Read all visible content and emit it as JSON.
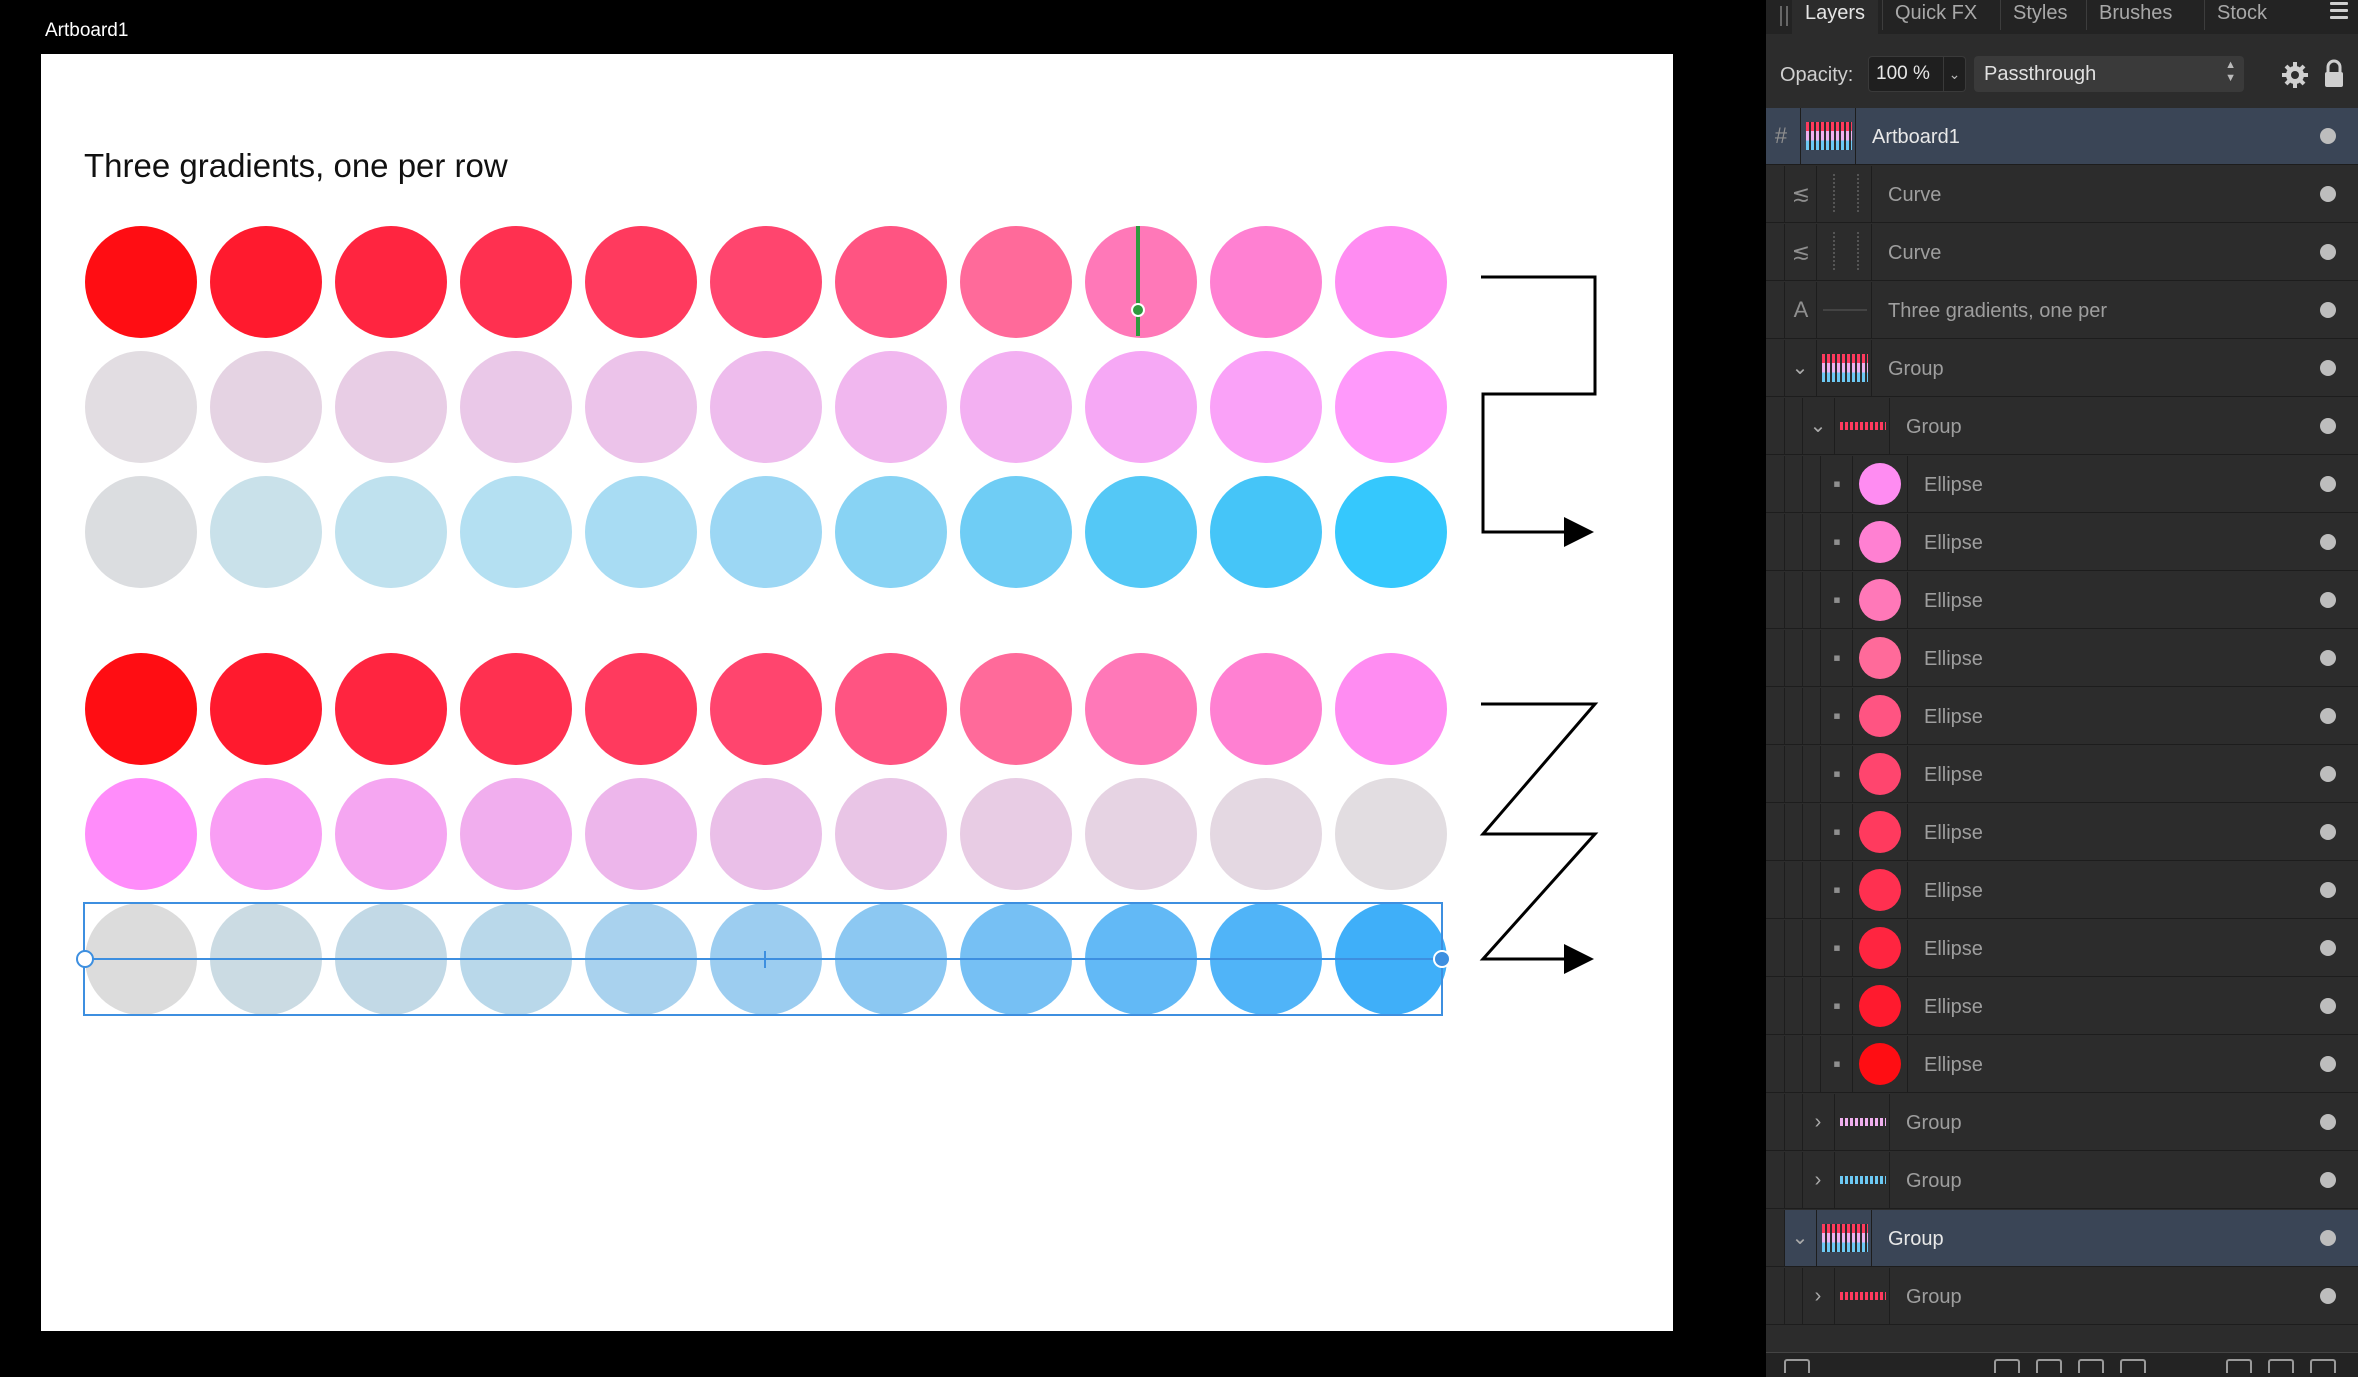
{
  "canvas": {
    "artboard_name": "Artboard1",
    "heading": "Three gradients, one per row"
  },
  "rows": [
    {
      "colors": [
        "#ff0d13",
        "#ff1a2e",
        "#ff2540",
        "#ff3050",
        "#ff3a5e",
        "#ff456e",
        "#ff5482",
        "#ff6a9a",
        "#ff78b8",
        "#ff80d2",
        "#ff8cf2"
      ]
    },
    {
      "colors": [
        "#e2dde2",
        "#e5d3e3",
        "#e8cde5",
        "#eac8e8",
        "#ecc3ea",
        "#eebced",
        "#f1b7ef",
        "#f3b0f2",
        "#f6a8f5",
        "#faa2f8",
        "#ff99fb"
      ]
    },
    {
      "colors": [
        "#dbdde0",
        "#c9e1ea",
        "#bfe1ee",
        "#b4e0f2",
        "#a8dcf3",
        "#9cd7f4",
        "#88d3f4",
        "#6fcdf5",
        "#54c8f6",
        "#45c5f8",
        "#35c8fd"
      ]
    },
    {
      "colors": [
        "#ff0d13",
        "#ff1a2e",
        "#ff2540",
        "#ff3050",
        "#ff3a5e",
        "#ff456e",
        "#ff5482",
        "#ff6a9a",
        "#ff78b8",
        "#ff80d2",
        "#ff8cf2"
      ]
    },
    {
      "colors": [
        "#ff8cfa",
        "#f99ef4",
        "#f5a6f1",
        "#f1aeee",
        "#edb6eb",
        "#eabfe8",
        "#e9c5e6",
        "#e8cce4",
        "#e6d3e3",
        "#e4d8e2",
        "#e2dde1"
      ]
    },
    {
      "colors": [
        "#dcdcdc",
        "#cbdbe3",
        "#c2d9e6",
        "#b9d8ea",
        "#a9d2ee",
        "#9ccdf0",
        "#8cc8f2",
        "#76c0f4",
        "#62b9f6",
        "#50b4f8",
        "#3faff9"
      ]
    }
  ],
  "layers_panel": {
    "tabs": [
      "Layers",
      "Quick FX",
      "Styles",
      "Brushes",
      "Stock"
    ],
    "active_tab": "Layers",
    "opacity_label": "Opacity:",
    "opacity_value": "100 %",
    "blend_mode": "Passthrough",
    "layers": [
      {
        "name": "Artboard1",
        "kind": "artboard",
        "selected": true
      },
      {
        "name": "Curve",
        "kind": "curve"
      },
      {
        "name": "Curve",
        "kind": "curve"
      },
      {
        "name": "Three gradients, one per",
        "kind": "text"
      },
      {
        "name": "Group",
        "kind": "group",
        "expanded": true
      },
      {
        "name": "Group",
        "kind": "group",
        "expanded": true
      },
      {
        "name": "Ellipse",
        "kind": "ellipse",
        "color": "#ff8cf2"
      },
      {
        "name": "Ellipse",
        "kind": "ellipse",
        "color": "#ff80d2"
      },
      {
        "name": "Ellipse",
        "kind": "ellipse",
        "color": "#ff78b8"
      },
      {
        "name": "Ellipse",
        "kind": "ellipse",
        "color": "#ff6a9a"
      },
      {
        "name": "Ellipse",
        "kind": "ellipse",
        "color": "#ff5482"
      },
      {
        "name": "Ellipse",
        "kind": "ellipse",
        "color": "#ff456e"
      },
      {
        "name": "Ellipse",
        "kind": "ellipse",
        "color": "#ff3a5e"
      },
      {
        "name": "Ellipse",
        "kind": "ellipse",
        "color": "#ff3050"
      },
      {
        "name": "Ellipse",
        "kind": "ellipse",
        "color": "#ff2540"
      },
      {
        "name": "Ellipse",
        "kind": "ellipse",
        "color": "#ff1a2e"
      },
      {
        "name": "Ellipse",
        "kind": "ellipse",
        "color": "#ff0d13"
      },
      {
        "name": "Group",
        "kind": "group",
        "expanded": false
      },
      {
        "name": "Group",
        "kind": "group",
        "expanded": false
      },
      {
        "name": "Group",
        "kind": "group",
        "expanded": true,
        "selected": true
      },
      {
        "name": "Group",
        "kind": "group",
        "expanded": false
      }
    ]
  },
  "colors": {
    "selection_blue": "#3d8fe0",
    "gradient_handle_green": "#2e9a3e",
    "panel_bg": "#2c2c2c",
    "selected_row": "#3a4556"
  }
}
